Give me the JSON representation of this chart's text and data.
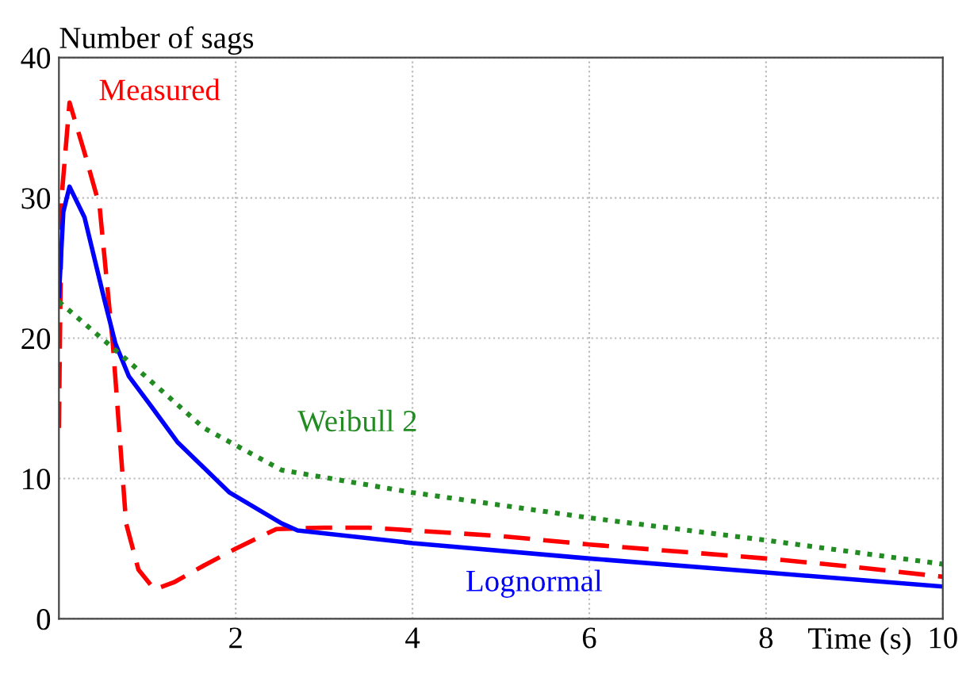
{
  "chart_data": {
    "type": "line",
    "xlabel": "Time (s)",
    "ylabel": "Number of sags",
    "xlim": [
      0,
      10
    ],
    "xticks": [
      2,
      4,
      6,
      8,
      10
    ],
    "ylim": [
      0,
      40
    ],
    "yticks": [
      0,
      10,
      20,
      30,
      40
    ],
    "grid": true,
    "legend": false,
    "series": [
      {
        "name": "Measured",
        "color": "#ff0000",
        "line_style": "dashed",
        "x": [
          0,
          0.03,
          0.12,
          0.3,
          0.46,
          0.61,
          0.76,
          0.9,
          1.08,
          1.3,
          1.64,
          2.0,
          2.46,
          3.0,
          3.5,
          4,
          5,
          6,
          7,
          8,
          9,
          10
        ],
        "values": [
          13.6,
          30,
          36.8,
          33,
          29.4,
          19.6,
          6.8,
          3.5,
          2.1,
          2.6,
          3.8,
          5.0,
          6.4,
          6.5,
          6.5,
          6.3,
          5.9,
          5.3,
          4.8,
          4.3,
          3.7,
          3.0
        ]
      },
      {
        "name": "Lognormal",
        "color": "#0000ff",
        "line_style": "solid",
        "x": [
          0,
          0.05,
          0.12,
          0.29,
          0.52,
          0.64,
          0.79,
          1.05,
          1.34,
          1.93,
          2.52,
          2.7,
          4,
          6,
          8,
          10
        ],
        "values": [
          23,
          29,
          30.8,
          28.6,
          22.6,
          19.6,
          17.3,
          15.1,
          12.6,
          9.0,
          6.8,
          6.3,
          5.4,
          4.3,
          3.3,
          2.3
        ]
      },
      {
        "name": "Weibull 2",
        "color": "#228b22",
        "line_style": "dotted",
        "x": [
          0,
          0.76,
          1.64,
          2.52,
          4,
          6,
          8,
          10
        ],
        "values": [
          22.6,
          18.5,
          13.6,
          10.6,
          9.0,
          7.2,
          5.6,
          3.9
        ]
      }
    ]
  }
}
